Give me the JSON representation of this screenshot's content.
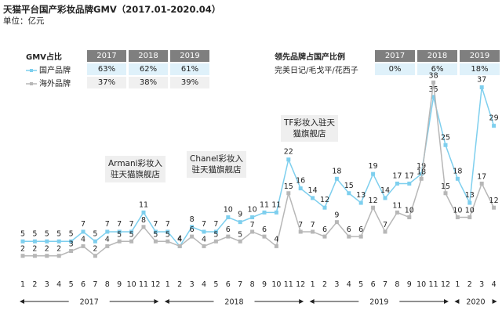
{
  "title": "天猫平台国产彩妆品牌GMV（2017.01-2020.04）",
  "unit": "单位：亿元",
  "gmv_table": {
    "corner": "GMV占比",
    "years": [
      "2017",
      "2018",
      "2019"
    ],
    "rows": [
      {
        "label": "国产品牌",
        "values": [
          "63%",
          "62%",
          "61%"
        ]
      },
      {
        "label": "海外品牌",
        "values": [
          "37%",
          "38%",
          "39%"
        ]
      }
    ]
  },
  "leading_table": {
    "corner": "领先品牌占国产比例",
    "years": [
      "2017",
      "2018",
      "2019"
    ],
    "rows": [
      {
        "label": "完美日记/毛戈平/花西子",
        "values": [
          "0%",
          "6%",
          "18%"
        ]
      }
    ]
  },
  "annotations": {
    "armani": "Armani彩妆入\n驻天猫旗舰店",
    "chanel": "Chanel彩妆入\n驻天猫旗舰店",
    "tf": "TF彩妆入驻天\n猫旗舰店"
  },
  "colors": {
    "domestic": "#7ecfee",
    "overseas": "#b7b7b7",
    "header": "#7f7f7f",
    "highlight": "#dff1fa"
  },
  "chart_data": {
    "type": "line",
    "x": [
      "1",
      "2",
      "3",
      "4",
      "5",
      "6",
      "7",
      "8",
      "9",
      "10",
      "11",
      "12",
      "1",
      "2",
      "3",
      "4",
      "5",
      "6",
      "7",
      "8",
      "9",
      "10",
      "11",
      "12",
      "1",
      "2",
      "3",
      "4",
      "5",
      "6",
      "7",
      "8",
      "9",
      "10",
      "11",
      "12",
      "1",
      "2",
      "3",
      "4"
    ],
    "year_groups": [
      {
        "label": "2017",
        "start": 0,
        "end": 11
      },
      {
        "label": "2018",
        "start": 12,
        "end": 23
      },
      {
        "label": "2019",
        "start": 24,
        "end": 35
      },
      {
        "label": "2020",
        "start": 36,
        "end": 39
      }
    ],
    "series": [
      {
        "name": "国产品牌",
        "color": "#7ecfee",
        "values": [
          5,
          5,
          5,
          5,
          5,
          7,
          5,
          7,
          7,
          7,
          11,
          7,
          7,
          4,
          8,
          7,
          7,
          10,
          9,
          10,
          11,
          11,
          22,
          16,
          14,
          12,
          18,
          15,
          13,
          19,
          14,
          17,
          17,
          19,
          35,
          25,
          18,
          13,
          37,
          29
        ]
      },
      {
        "name": "海外品牌",
        "color": "#b7b7b7",
        "values": [
          2,
          2,
          2,
          2,
          3,
          4,
          2,
          4,
          5,
          5,
          8,
          5,
          5,
          4,
          6,
          4,
          5,
          6,
          5,
          7,
          6,
          4,
          15,
          7,
          7,
          6,
          9,
          6,
          6,
          12,
          7,
          11,
          10,
          18,
          38,
          15,
          10,
          10,
          17,
          12
        ]
      }
    ],
    "ylim": [
      0,
      40
    ]
  }
}
